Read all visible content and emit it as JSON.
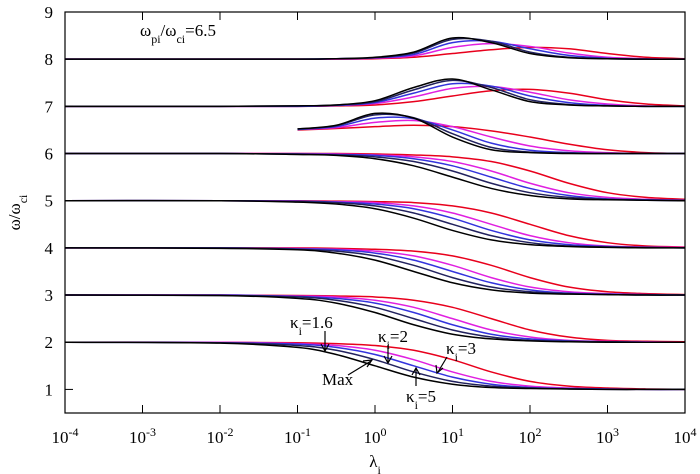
{
  "chart_data": {
    "type": "line",
    "title": [
      "ω",
      "pi",
      "/ω",
      "ci",
      "=6.5"
    ],
    "xlabel": [
      "λ",
      "i"
    ],
    "ylabel": [
      "ω/ω",
      "ci"
    ],
    "xlog": true,
    "xlim": [
      0.0001,
      10000
    ],
    "ylim": [
      0.5,
      9
    ],
    "xticks": [
      {
        "value": 0.0001,
        "label": [
          "10",
          "-4"
        ]
      },
      {
        "value": 0.001,
        "label": [
          "10",
          "-3"
        ]
      },
      {
        "value": 0.01,
        "label": [
          "10",
          "-2"
        ]
      },
      {
        "value": 0.1,
        "label": [
          "10",
          "-1"
        ]
      },
      {
        "value": 1,
        "label": [
          "10",
          "0"
        ]
      },
      {
        "value": 10,
        "label": [
          "10",
          "1"
        ]
      },
      {
        "value": 100,
        "label": [
          "10",
          "2"
        ]
      },
      {
        "value": 1000,
        "label": [
          "10",
          "3"
        ]
      },
      {
        "value": 10000,
        "label": [
          "10",
          "4"
        ]
      }
    ],
    "yticks": [
      1,
      2,
      3,
      4,
      5,
      6,
      7,
      8,
      9
    ],
    "annotations": [
      [
        "κ",
        "i",
        "=1.6"
      ],
      [
        "κ",
        "i",
        "=2"
      ],
      [
        "κ",
        "i",
        "=3"
      ],
      [
        "κ",
        "i",
        "=5"
      ],
      "Max"
    ],
    "x": [
      0.0001,
      0.01,
      0.1,
      0.316,
      1,
      3.16,
      10,
      31.6,
      100,
      316,
      1000,
      3162,
      10000
    ],
    "series": [
      {
        "color": "#e8001c",
        "values": [
          2,
          2,
          1.99,
          1.97,
          1.93,
          1.83,
          1.63,
          1.37,
          1.17,
          1.07,
          1.03,
          1.01,
          1
        ]
      },
      {
        "color": "#e8001c",
        "values": [
          3,
          3,
          2.99,
          2.98,
          2.96,
          2.89,
          2.74,
          2.5,
          2.26,
          2.11,
          2.04,
          2.02,
          2.01
        ]
      },
      {
        "color": "#e8001c",
        "values": [
          4,
          4,
          4,
          3.99,
          3.97,
          3.93,
          3.83,
          3.63,
          3.37,
          3.17,
          3.07,
          3.03,
          3.01
        ]
      },
      {
        "color": "#e8001c",
        "values": [
          5,
          5,
          5,
          4.99,
          4.98,
          4.96,
          4.89,
          4.74,
          4.5,
          4.26,
          4.11,
          4.04,
          4.02
        ]
      },
      {
        "color": "#e8001c",
        "values": [
          6,
          6,
          6,
          6,
          5.99,
          5.97,
          5.93,
          5.83,
          5.63,
          5.37,
          5.17,
          5.07,
          5.03
        ]
      },
      {
        "color": "#e8001c",
        "values": [
          null,
          null,
          6.5,
          6.53,
          6.57,
          6.6,
          6.57,
          6.48,
          6.35,
          6.2,
          6.08,
          6.02,
          6
        ]
      },
      {
        "color": "#e8001c",
        "values": [
          7,
          7,
          7,
          7.01,
          7.03,
          7.1,
          7.22,
          7.33,
          7.36,
          7.28,
          7.14,
          7.05,
          7.01
        ]
      },
      {
        "color": "#e8001c",
        "values": [
          8,
          8,
          8,
          8,
          8.01,
          8.04,
          8.12,
          8.2,
          8.25,
          8.22,
          8.12,
          8.04,
          8.01
        ]
      },
      {
        "color": "#e020e0",
        "values": [
          2,
          2,
          1.97,
          1.93,
          1.83,
          1.63,
          1.37,
          1.17,
          1.07,
          1.03,
          1.01,
          1,
          1
        ]
      },
      {
        "color": "#e020e0",
        "values": [
          3,
          3,
          2.98,
          2.96,
          2.89,
          2.74,
          2.5,
          2.26,
          2.11,
          2.04,
          2.02,
          2.01,
          2
        ]
      },
      {
        "color": "#e020e0",
        "values": [
          4,
          4,
          3.99,
          3.97,
          3.93,
          3.83,
          3.63,
          3.37,
          3.17,
          3.07,
          3.03,
          3.01,
          3
        ]
      },
      {
        "color": "#e020e0",
        "values": [
          5,
          5,
          4.99,
          4.98,
          4.96,
          4.89,
          4.74,
          4.5,
          4.26,
          4.11,
          4.04,
          4.02,
          4.01
        ]
      },
      {
        "color": "#e020e0",
        "values": [
          6,
          6,
          6,
          5.99,
          5.97,
          5.93,
          5.83,
          5.63,
          5.37,
          5.17,
          5.07,
          5.03,
          5.01
        ]
      },
      {
        "color": "#e020e0",
        "values": [
          null,
          null,
          6.51,
          6.55,
          6.66,
          6.7,
          6.57,
          6.35,
          6.16,
          6.06,
          6.02,
          6,
          6
        ]
      },
      {
        "color": "#e020e0",
        "values": [
          7,
          7,
          7,
          7.02,
          7.06,
          7.2,
          7.38,
          7.42,
          7.3,
          7.14,
          7.05,
          7.01,
          7
        ]
      },
      {
        "color": "#e020e0",
        "values": [
          8,
          8,
          8,
          8,
          8.02,
          8.07,
          8.25,
          8.33,
          8.27,
          8.13,
          8.04,
          8.01,
          8
        ]
      },
      {
        "color": "#3333dd",
        "values": [
          2,
          1.99,
          1.96,
          1.89,
          1.74,
          1.5,
          1.26,
          1.11,
          1.04,
          1.02,
          1.01,
          1,
          1
        ]
      },
      {
        "color": "#3333dd",
        "values": [
          3,
          3,
          2.97,
          2.93,
          2.83,
          2.63,
          2.37,
          2.17,
          2.07,
          2.03,
          2.01,
          2,
          2
        ]
      },
      {
        "color": "#3333dd",
        "values": [
          4,
          4,
          3.98,
          3.96,
          3.89,
          3.74,
          3.5,
          3.26,
          3.11,
          3.04,
          3.02,
          3.01,
          3
        ]
      },
      {
        "color": "#3333dd",
        "values": [
          5,
          5,
          4.99,
          4.97,
          4.93,
          4.83,
          4.63,
          4.37,
          4.17,
          4.07,
          4.03,
          4.01,
          4
        ]
      },
      {
        "color": "#3333dd",
        "values": [
          6,
          6,
          5.99,
          5.98,
          5.96,
          5.89,
          5.74,
          5.5,
          5.26,
          5.11,
          5.04,
          5.02,
          5.01
        ]
      },
      {
        "color": "#3333dd",
        "values": [
          null,
          null,
          6.51,
          6.57,
          6.75,
          6.74,
          6.5,
          6.22,
          6.07,
          6.02,
          6,
          6,
          6
        ]
      },
      {
        "color": "#3333dd",
        "values": [
          7,
          7,
          7,
          7.02,
          7.08,
          7.28,
          7.48,
          7.43,
          7.22,
          7.08,
          7.02,
          7,
          7
        ]
      },
      {
        "color": "#3333dd",
        "values": [
          8,
          8,
          8,
          8.01,
          8.03,
          8.1,
          8.35,
          8.38,
          8.22,
          8.08,
          8.02,
          8,
          8
        ]
      },
      {
        "color": "#22225e",
        "values": [
          2,
          1.99,
          1.93,
          1.83,
          1.63,
          1.37,
          1.17,
          1.07,
          1.03,
          1.01,
          1,
          1,
          1
        ]
      },
      {
        "color": "#22225e",
        "values": [
          3,
          2.99,
          2.96,
          2.89,
          2.74,
          2.5,
          2.26,
          2.11,
          2.04,
          2.02,
          2.01,
          2,
          2
        ]
      },
      {
        "color": "#22225e",
        "values": [
          4,
          4,
          3.97,
          3.93,
          3.83,
          3.63,
          3.37,
          3.17,
          3.07,
          3.03,
          3.01,
          3,
          3
        ]
      },
      {
        "color": "#22225e",
        "values": [
          5,
          5,
          4.98,
          4.96,
          4.89,
          4.74,
          4.5,
          4.26,
          4.11,
          4.04,
          4.02,
          4.01,
          4
        ]
      },
      {
        "color": "#22225e",
        "values": [
          6,
          6,
          5.99,
          5.97,
          5.93,
          5.83,
          5.63,
          5.37,
          5.17,
          5.07,
          5.03,
          5.01,
          5
        ]
      },
      {
        "color": "#22225e",
        "values": [
          null,
          null,
          6.52,
          6.59,
          6.82,
          6.76,
          6.42,
          6.13,
          6.03,
          6.01,
          6,
          6,
          6
        ]
      },
      {
        "color": "#22225e",
        "values": [
          7,
          7,
          7.01,
          7.03,
          7.1,
          7.35,
          7.55,
          7.4,
          7.14,
          7.04,
          7.01,
          7,
          7
        ]
      },
      {
        "color": "#22225e",
        "values": [
          8,
          8,
          8,
          8.01,
          8.03,
          8.13,
          8.42,
          8.38,
          8.15,
          8.04,
          8.01,
          8,
          8
        ]
      },
      {
        "color": "#000000",
        "values": [
          2,
          1.98,
          1.89,
          1.74,
          1.5,
          1.26,
          1.11,
          1.04,
          1.02,
          1.01,
          1,
          1,
          1
        ]
      },
      {
        "color": "#000000",
        "values": [
          3,
          2.99,
          2.93,
          2.83,
          2.63,
          2.37,
          2.17,
          2.07,
          2.03,
          2.01,
          2,
          2,
          2
        ]
      },
      {
        "color": "#000000",
        "values": [
          4,
          3.99,
          3.96,
          3.89,
          3.74,
          3.5,
          3.26,
          3.11,
          3.04,
          3.02,
          3.01,
          3,
          3
        ]
      },
      {
        "color": "#000000",
        "values": [
          5,
          5,
          4.97,
          4.93,
          4.83,
          4.63,
          4.37,
          4.17,
          4.07,
          4.03,
          4.01,
          4,
          4
        ]
      },
      {
        "color": "#000000",
        "values": [
          6,
          6,
          5.98,
          5.96,
          5.89,
          5.74,
          5.5,
          5.26,
          5.11,
          5.04,
          5.02,
          5.01,
          5
        ]
      },
      {
        "color": "#000000",
        "values": [
          null,
          null,
          6.52,
          6.6,
          6.85,
          6.75,
          6.35,
          6.08,
          6.02,
          6,
          6,
          6,
          6
        ]
      },
      {
        "color": "#000000",
        "values": [
          7,
          7,
          7.01,
          7.03,
          7.12,
          7.4,
          7.58,
          7.35,
          7.1,
          7.03,
          7.01,
          7,
          7
        ]
      },
      {
        "color": "#000000",
        "values": [
          8,
          8,
          8,
          8.01,
          8.04,
          8.15,
          8.45,
          8.35,
          8.12,
          8.03,
          8.01,
          8,
          8
        ]
      }
    ]
  }
}
